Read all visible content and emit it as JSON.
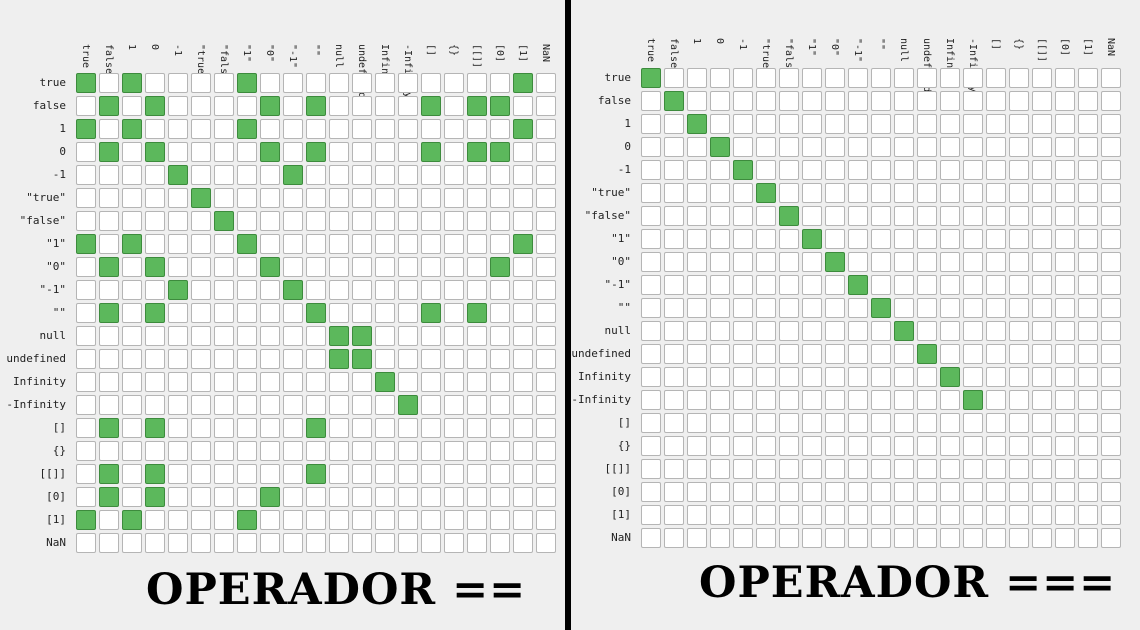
{
  "labels": [
    "true",
    "false",
    "1",
    "0",
    "-1",
    "\"true\"",
    "\"false\"",
    "\"1\"",
    "\"0\"",
    "\"-1\"",
    "\"\"",
    "null",
    "undefined",
    "Infinity",
    "-Infinity",
    "[]",
    "{}",
    "[[]]",
    "[0]",
    "[1]",
    "NaN"
  ],
  "colors": {
    "on": "#5cb85c",
    "off": "#ffffff"
  },
  "panels": [
    {
      "title": "OPERADOR ==",
      "rows": [
        "101000010000000000010",
        "010100001010000101100",
        "101000010000000000010",
        "010100001010000101100",
        "000010000100000000000",
        "000001000000000000000",
        "000000100000000000000",
        "101000010000000000010",
        "010100001000000000100",
        "000010000100000000000",
        "010100000010000101000",
        "000000000001100000000",
        "000000000001100000000",
        "000000000000010000000",
        "000000000000001000000",
        "010100000010000000000",
        "000000000000000000000",
        "010100000010000000000",
        "010100001000000000000",
        "101000010000000000000",
        "000000000000000000000"
      ]
    },
    {
      "title": "OPERADOR ===",
      "rows": [
        "100000000000000000000",
        "010000000000000000000",
        "001000000000000000000",
        "000100000000000000000",
        "000010000000000000000",
        "000001000000000000000",
        "000000100000000000000",
        "000000010000000000000",
        "000000001000000000000",
        "000000000100000000000",
        "000000000010000000000",
        "000000000001000000000",
        "000000000000100000000",
        "000000000000010000000",
        "000000000000001000000",
        "000000000000000000000",
        "000000000000000000000",
        "000000000000000000000",
        "000000000000000000000",
        "000000000000000000000",
        "000000000000000000000"
      ]
    }
  ]
}
